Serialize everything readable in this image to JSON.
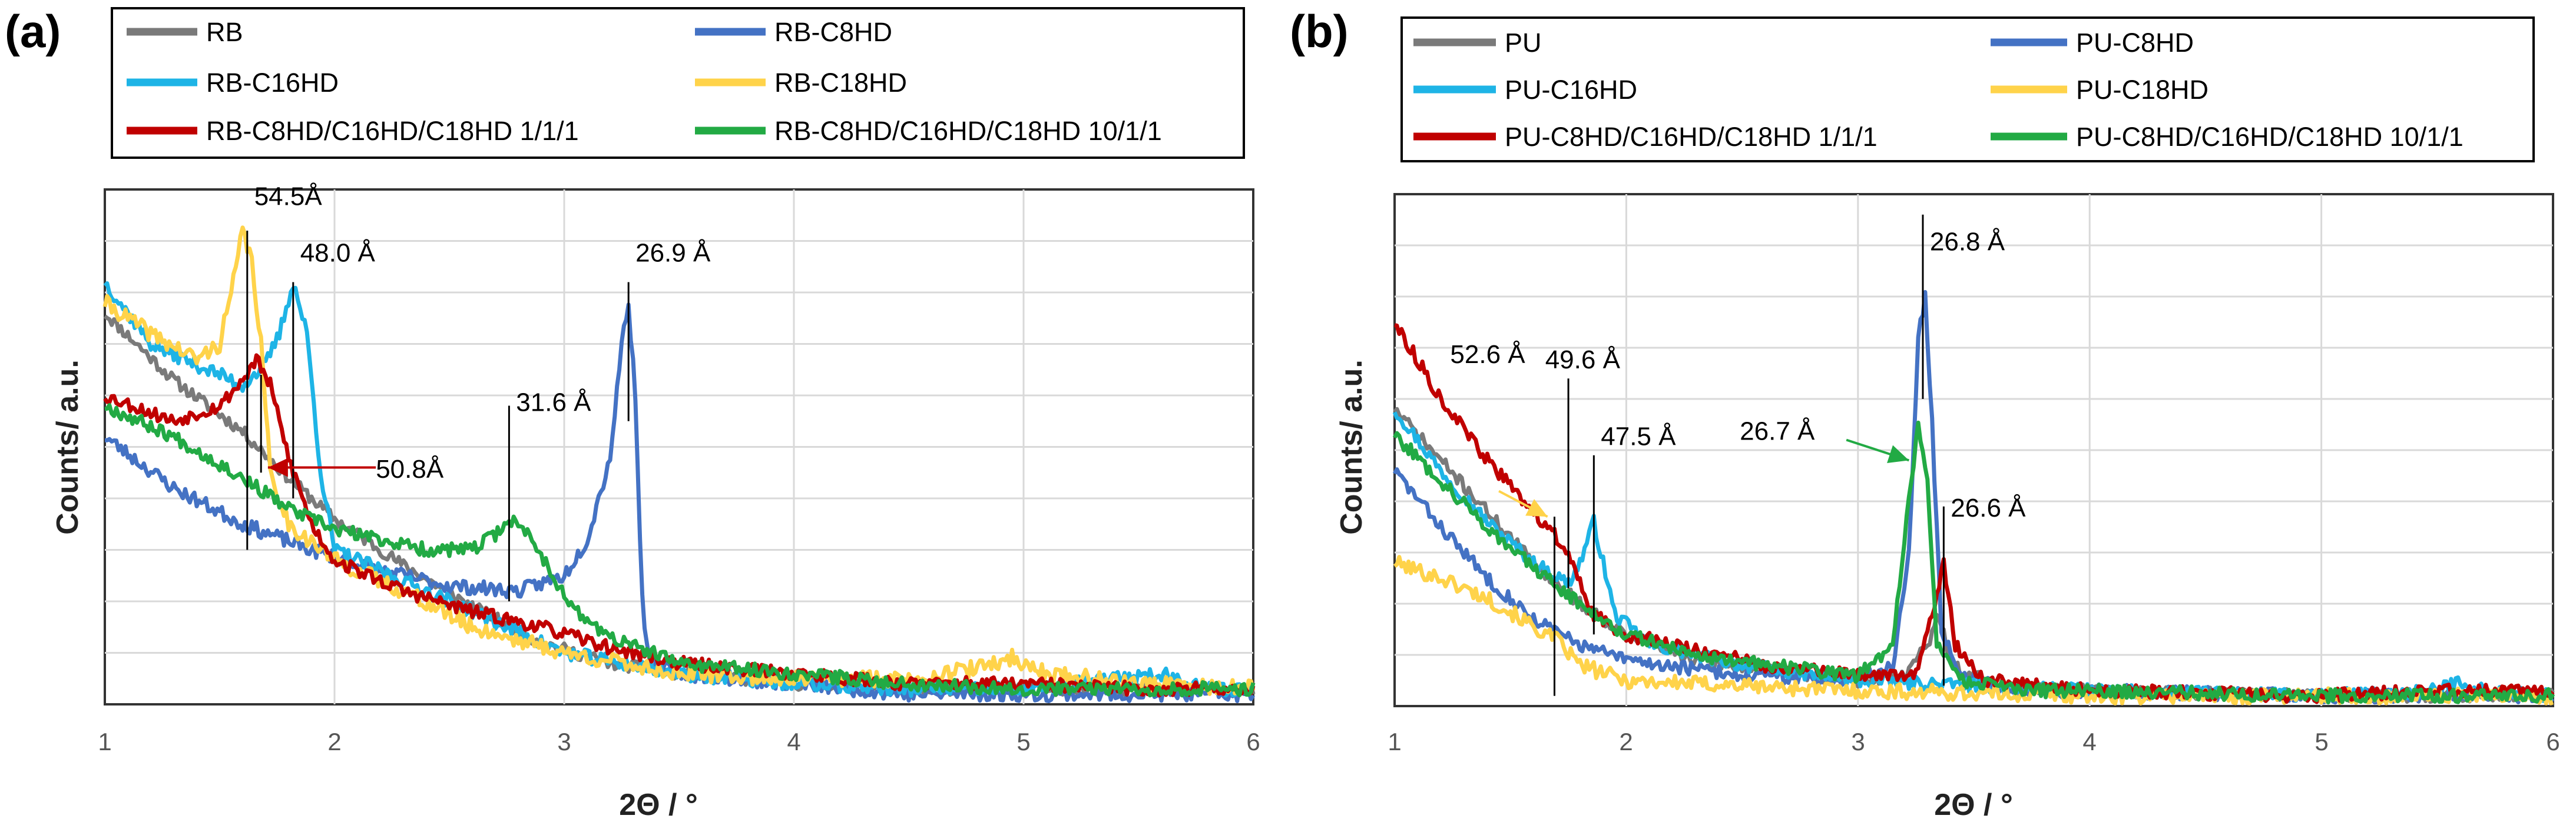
{
  "chart_data": [
    {
      "panel": "(a)",
      "type": "line",
      "xlabel": "2Θ / °",
      "ylabel": "Counts/ a.u.",
      "xlim": [
        1,
        6
      ],
      "ylim": [
        0,
        100
      ],
      "xticks": [
        "1",
        "2",
        "3",
        "4",
        "5",
        "6"
      ],
      "grid": true,
      "legend": [
        {
          "name": "RB",
          "color": "#7a7a7a"
        },
        {
          "name": "RB-C8HD",
          "color": "#4472c4"
        },
        {
          "name": "RB-C16HD",
          "color": "#1eb4e6"
        },
        {
          "name": "RB-C18HD",
          "color": "#ffd34a"
        },
        {
          "name": "RB-C8HD/C16HD/C18HD 1/1/1",
          "color": "#c00000"
        },
        {
          "name": "RB-C8HD/C16HD/C18HD 10/1/1",
          "color": "#22aa44"
        }
      ],
      "series": [
        {
          "name": "RB",
          "color": "#7a7a7a",
          "noise": 1.2,
          "seed": 11,
          "points": [
            [
              1,
              76
            ],
            [
              1.3,
              63
            ],
            [
              1.6,
              53
            ],
            [
              1.8,
              44
            ],
            [
              2.0,
              36
            ],
            [
              2.3,
              27
            ],
            [
              2.6,
              19
            ],
            [
              2.9,
              12
            ],
            [
              3.2,
              8
            ],
            [
              3.5,
              6
            ],
            [
              4,
              4
            ],
            [
              4.5,
              3
            ],
            [
              5,
              3
            ],
            [
              5.5,
              3
            ],
            [
              6,
              3
            ]
          ]
        },
        {
          "name": "RB-C8HD",
          "color": "#4472c4",
          "noise": 1.4,
          "seed": 23,
          "points": [
            [
              1,
              52
            ],
            [
              1.3,
              42
            ],
            [
              1.6,
              35
            ],
            [
              1.9,
              30
            ],
            [
              2.2,
              26
            ],
            [
              2.5,
              23
            ],
            [
              2.8,
              22
            ],
            [
              3.0,
              25
            ],
            [
              3.1,
              32
            ],
            [
              3.2,
              48
            ],
            [
              3.25,
              70
            ],
            [
              3.28,
              78
            ],
            [
              3.31,
              60
            ],
            [
              3.34,
              20
            ],
            [
              3.37,
              8
            ],
            [
              3.5,
              6
            ],
            [
              4,
              4
            ],
            [
              4.5,
              2
            ],
            [
              5,
              2
            ],
            [
              5.5,
              2
            ],
            [
              6,
              2
            ]
          ]
        },
        {
          "name": "RB-C16HD",
          "color": "#1eb4e6",
          "noise": 1.4,
          "seed": 37,
          "points": [
            [
              1,
              82
            ],
            [
              1.2,
              70
            ],
            [
              1.4,
              66
            ],
            [
              1.6,
              62
            ],
            [
              1.7,
              66
            ],
            [
              1.76,
              72
            ],
            [
              1.82,
              82
            ],
            [
              1.88,
              72
            ],
            [
              1.94,
              45
            ],
            [
              2.0,
              30
            ],
            [
              2.3,
              24
            ],
            [
              2.6,
              18
            ],
            [
              3,
              10
            ],
            [
              3.5,
              6
            ],
            [
              4,
              4
            ],
            [
              4.5,
              3
            ],
            [
              5,
              3
            ],
            [
              5.4,
              5
            ],
            [
              5.6,
              6
            ],
            [
              5.8,
              3
            ],
            [
              6,
              3
            ]
          ]
        },
        {
          "name": "RB-C18HD",
          "color": "#ffd34a",
          "noise": 1.6,
          "seed": 41,
          "points": [
            [
              1,
              78
            ],
            [
              1.2,
              72
            ],
            [
              1.4,
              67
            ],
            [
              1.5,
              70
            ],
            [
              1.56,
              82
            ],
            [
              1.6,
              92
            ],
            [
              1.64,
              86
            ],
            [
              1.68,
              70
            ],
            [
              1.72,
              45
            ],
            [
              1.8,
              35
            ],
            [
              2.0,
              28
            ],
            [
              2.3,
              22
            ],
            [
              2.6,
              15
            ],
            [
              3,
              10
            ],
            [
              3.5,
              6
            ],
            [
              4,
              5
            ],
            [
              4.5,
              5
            ],
            [
              4.8,
              7
            ],
            [
              4.95,
              9
            ],
            [
              5.1,
              6
            ],
            [
              5.5,
              4
            ],
            [
              6,
              3
            ]
          ]
        },
        {
          "name": "RB-C8HD/C16HD/C18HD 1/1/1",
          "color": "#c00000",
          "noise": 1.3,
          "seed": 53,
          "points": [
            [
              1,
              60
            ],
            [
              1.3,
              55
            ],
            [
              1.5,
              58
            ],
            [
              1.6,
              63
            ],
            [
              1.66,
              67
            ],
            [
              1.72,
              62
            ],
            [
              1.8,
              48
            ],
            [
              1.9,
              35
            ],
            [
              2.0,
              28
            ],
            [
              2.3,
              22
            ],
            [
              2.6,
              18
            ],
            [
              2.9,
              15
            ],
            [
              3.2,
              11
            ],
            [
              3.5,
              8
            ],
            [
              4,
              6
            ],
            [
              4.5,
              4
            ],
            [
              5,
              4
            ],
            [
              5.5,
              3
            ],
            [
              6,
              3
            ]
          ]
        },
        {
          "name": "RB-C8HD/C16HD/C18HD 10/1/1",
          "color": "#22aa44",
          "noise": 1.3,
          "seed": 67,
          "points": [
            [
              1,
              58
            ],
            [
              1.3,
              52
            ],
            [
              1.6,
              44
            ],
            [
              1.8,
              38
            ],
            [
              2.0,
              34
            ],
            [
              2.2,
              32
            ],
            [
              2.4,
              30
            ],
            [
              2.6,
              30
            ],
            [
              2.7,
              33
            ],
            [
              2.76,
              36
            ],
            [
              2.85,
              33
            ],
            [
              2.95,
              25
            ],
            [
              3.05,
              18
            ],
            [
              3.2,
              13
            ],
            [
              3.5,
              8
            ],
            [
              4,
              6
            ],
            [
              4.5,
              4
            ],
            [
              5,
              3
            ],
            [
              5.5,
              3
            ],
            [
              6,
              3
            ]
          ]
        }
      ],
      "annotations": [
        {
          "text": "54.5Å",
          "x": 1.62,
          "y": 92
        },
        {
          "text": "48.0 Å",
          "x": 1.82,
          "y": 83
        },
        {
          "text": "26.9 Å",
          "x": 3.28,
          "y": 83
        },
        {
          "text": "31.6 Å",
          "x": 2.76,
          "y": 56
        },
        {
          "text": "50.8Å",
          "x": 1.68,
          "y": 46
        }
      ]
    },
    {
      "panel": "(b)",
      "type": "line",
      "xlabel": "2Θ / °",
      "ylabel": "Counts/ a.u.",
      "xlim": [
        1,
        6
      ],
      "ylim": [
        0,
        100
      ],
      "xticks": [
        "1",
        "2",
        "3",
        "4",
        "5",
        "6"
      ],
      "grid": true,
      "legend": [
        {
          "name": "PU",
          "color": "#7a7a7a"
        },
        {
          "name": "PU-C8HD",
          "color": "#4472c4"
        },
        {
          "name": "PU-C16HD",
          "color": "#1eb4e6"
        },
        {
          "name": "PU-C18HD",
          "color": "#ffd34a"
        },
        {
          "name": "PU-C8HD/C16HD/C18HD 1/1/1",
          "color": "#c00000"
        },
        {
          "name": "PU-C8HD/C16HD/C18HD 10/1/1",
          "color": "#22aa44"
        }
      ],
      "series": [
        {
          "name": "PU",
          "color": "#7a7a7a",
          "noise": 1.2,
          "seed": 71,
          "points": [
            [
              1,
              58
            ],
            [
              1.2,
              48
            ],
            [
              1.4,
              38
            ],
            [
              1.6,
              28
            ],
            [
              1.8,
              20
            ],
            [
              2.0,
              14
            ],
            [
              2.3,
              9
            ],
            [
              2.6,
              7
            ],
            [
              3,
              5
            ],
            [
              3.2,
              6
            ],
            [
              3.3,
              12
            ],
            [
              3.35,
              18
            ],
            [
              3.4,
              8
            ],
            [
              3.6,
              4
            ],
            [
              4,
              3
            ],
            [
              5,
              2
            ],
            [
              6,
              2
            ]
          ]
        },
        {
          "name": "PU-C8HD",
          "color": "#4472c4",
          "noise": 1.3,
          "seed": 83,
          "points": [
            [
              1,
              46
            ],
            [
              1.2,
              35
            ],
            [
              1.4,
              25
            ],
            [
              1.6,
              17
            ],
            [
              1.8,
              12
            ],
            [
              2.0,
              9
            ],
            [
              2.5,
              6
            ],
            [
              3.0,
              5
            ],
            [
              3.15,
              8
            ],
            [
              3.22,
              30
            ],
            [
              3.26,
              72
            ],
            [
              3.29,
              80
            ],
            [
              3.32,
              55
            ],
            [
              3.36,
              15
            ],
            [
              3.45,
              6
            ],
            [
              3.7,
              3
            ],
            [
              4,
              3
            ],
            [
              5,
              2
            ],
            [
              6,
              2
            ]
          ]
        },
        {
          "name": "PU-C16HD",
          "color": "#1eb4e6",
          "noise": 1.3,
          "seed": 97,
          "points": [
            [
              1,
              58
            ],
            [
              1.2,
              46
            ],
            [
              1.4,
              36
            ],
            [
              1.6,
              28
            ],
            [
              1.75,
              24
            ],
            [
              1.8,
              28
            ],
            [
              1.86,
              36
            ],
            [
              1.9,
              28
            ],
            [
              1.95,
              18
            ],
            [
              2.1,
              12
            ],
            [
              2.5,
              8
            ],
            [
              3,
              5
            ],
            [
              3.5,
              4
            ],
            [
              4,
              3
            ],
            [
              5,
              2
            ],
            [
              5.5,
              3
            ],
            [
              5.6,
              5
            ],
            [
              5.7,
              3
            ],
            [
              6,
              2
            ]
          ]
        },
        {
          "name": "PU-C18HD",
          "color": "#ffd34a",
          "noise": 1.5,
          "seed": 101,
          "points": [
            [
              1,
              28
            ],
            [
              1.2,
              25
            ],
            [
              1.4,
              21
            ],
            [
              1.55,
              17
            ],
            [
              1.65,
              14
            ],
            [
              1.7,
              13
            ],
            [
              1.8,
              8
            ],
            [
              2.0,
              5
            ],
            [
              2.5,
              4
            ],
            [
              3,
              3
            ],
            [
              4,
              2
            ],
            [
              5,
              2
            ],
            [
              6,
              2
            ]
          ]
        },
        {
          "name": "PU-C8HD/C16HD/C18HD 1/1/1",
          "color": "#c00000",
          "noise": 1.3,
          "seed": 113,
          "points": [
            [
              1,
              75
            ],
            [
              1.2,
              60
            ],
            [
              1.4,
              48
            ],
            [
              1.6,
              38
            ],
            [
              1.72,
              32
            ],
            [
              1.78,
              26
            ],
            [
              1.85,
              18
            ],
            [
              2.0,
              14
            ],
            [
              2.3,
              11
            ],
            [
              2.6,
              8
            ],
            [
              3,
              6
            ],
            [
              3.25,
              6
            ],
            [
              3.32,
              18
            ],
            [
              3.37,
              28
            ],
            [
              3.42,
              12
            ],
            [
              3.55,
              5
            ],
            [
              4,
              3
            ],
            [
              5,
              2
            ],
            [
              5.5,
              3
            ],
            [
              6,
              3
            ]
          ]
        },
        {
          "name": "PU-C8HD/C16HD/C18HD 10/1/1",
          "color": "#22aa44",
          "noise": 1.3,
          "seed": 127,
          "points": [
            [
              1,
              53
            ],
            [
              1.2,
              44
            ],
            [
              1.4,
              35
            ],
            [
              1.6,
              27
            ],
            [
              1.8,
              20
            ],
            [
              2.0,
              14
            ],
            [
              2.3,
              10
            ],
            [
              2.6,
              8
            ],
            [
              3,
              6
            ],
            [
              3.15,
              12
            ],
            [
              3.22,
              40
            ],
            [
              3.26,
              55
            ],
            [
              3.3,
              45
            ],
            [
              3.34,
              12
            ],
            [
              3.45,
              5
            ],
            [
              3.7,
              3
            ],
            [
              4,
              3
            ],
            [
              5,
              2
            ],
            [
              6,
              2
            ]
          ]
        }
      ],
      "annotations": [
        {
          "text": "26.8 Å",
          "x": 3.28,
          "y": 83
        },
        {
          "text": "52.6 Å",
          "x": 1.68,
          "y": 38
        },
        {
          "text": "49.6 Å",
          "x": 1.78,
          "y": 33
        },
        {
          "text": "47.5 Å",
          "x": 1.86,
          "y": 40
        },
        {
          "text": "26.7 Å",
          "x": 3.26,
          "y": 50
        },
        {
          "text": "26.6 Å",
          "x": 3.37,
          "y": 35
        }
      ]
    }
  ]
}
